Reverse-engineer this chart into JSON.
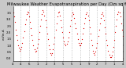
{
  "title": "Milwaukee Weather Evapotranspiration per Day (Ozs sq/ft)",
  "title_fontsize": 3.8,
  "bg_color": "#c8c8c8",
  "plot_bg_color": "#ffffff",
  "line_color": "#dd0000",
  "marker": ".",
  "marker_size": 1.8,
  "grid_color": "#aaaaaa",
  "x_values": [
    1,
    2,
    3,
    4,
    5,
    6,
    7,
    8,
    9,
    10,
    11,
    12,
    13,
    14,
    15,
    16,
    17,
    18,
    19,
    20,
    21,
    22,
    23,
    24,
    25,
    26,
    27,
    28,
    29,
    30,
    31,
    32,
    33,
    34,
    35,
    36,
    37,
    38,
    39,
    40,
    41,
    42,
    43,
    44,
    45,
    46,
    47,
    48,
    49,
    50,
    51,
    52,
    53,
    54,
    55,
    56,
    57,
    58,
    59,
    60,
    61,
    62,
    63,
    64,
    65,
    66,
    67,
    68,
    69,
    70,
    71,
    72,
    73,
    74,
    75,
    76,
    77,
    78,
    79,
    80,
    81,
    82,
    83,
    84,
    85,
    86,
    87,
    88,
    89,
    90,
    91,
    92,
    93,
    94,
    95,
    96,
    97,
    98,
    99,
    100,
    101,
    102,
    103,
    104,
    105,
    106,
    107,
    108,
    109,
    110,
    111,
    112,
    113,
    114,
    115,
    116,
    117,
    118,
    119,
    120,
    121,
    122,
    123,
    124,
    125,
    126,
    127,
    128,
    129,
    130
  ],
  "y_values": [
    3.5,
    3.2,
    2.8,
    2.2,
    1.8,
    1.4,
    1.0,
    0.8,
    0.6,
    0.7,
    0.9,
    1.2,
    1.6,
    2.1,
    2.6,
    3.0,
    3.4,
    3.6,
    3.5,
    3.2,
    2.8,
    2.3,
    1.8,
    1.4,
    1.0,
    0.7,
    0.5,
    0.6,
    0.8,
    1.1,
    1.5,
    2.0,
    2.5,
    3.0,
    3.4,
    3.7,
    3.6,
    3.3,
    2.9,
    2.4,
    1.9,
    1.5,
    1.0,
    0.7,
    0.4,
    0.3,
    0.4,
    0.7,
    1.1,
    1.6,
    2.2,
    2.7,
    3.2,
    3.5,
    3.6,
    3.3,
    2.9,
    2.4,
    2.0,
    1.6,
    1.3,
    1.1,
    1.0,
    1.1,
    1.3,
    1.6,
    2.0,
    2.5,
    2.9,
    3.3,
    3.5,
    3.4,
    3.1,
    2.7,
    2.3,
    1.9,
    1.5,
    1.2,
    1.0,
    1.0,
    1.2,
    1.5,
    1.9,
    2.3,
    2.7,
    3.1,
    3.4,
    3.5,
    3.3,
    2.9,
    2.4,
    1.9,
    1.4,
    1.0,
    0.6,
    0.4,
    0.3,
    0.5,
    0.8,
    1.2,
    1.7,
    2.2,
    2.7,
    3.1,
    3.4,
    3.5,
    3.3,
    2.9,
    2.4,
    1.9,
    1.4,
    1.0,
    0.6,
    0.3,
    0.1,
    0.1,
    0.2,
    0.5,
    0.9,
    1.4,
    2.0,
    2.5,
    3.0,
    3.4,
    3.6,
    3.5,
    3.2,
    2.7,
    2.2,
    1.7
  ],
  "xtick_positions": [
    1,
    10,
    20,
    30,
    40,
    50,
    60,
    70,
    80,
    90,
    100,
    110,
    120,
    130
  ],
  "xtick_labels": [
    "4",
    "4",
    "6",
    "1",
    "2",
    "3",
    "5",
    "5",
    "1",
    "9",
    "2",
    "7",
    "1",
    "4"
  ],
  "ylim": [
    -0.2,
    4.0
  ],
  "yticks": [
    0.0,
    0.5,
    1.0,
    1.5,
    2.0,
    2.5,
    3.0,
    3.5
  ],
  "vline_positions": [
    10,
    20,
    30,
    40,
    50,
    60,
    70,
    80,
    90,
    100,
    110,
    120,
    130
  ],
  "ylabel_left": "e.t/in.d.",
  "tick_fontsize": 2.8,
  "ylabel_fontsize": 3.0
}
